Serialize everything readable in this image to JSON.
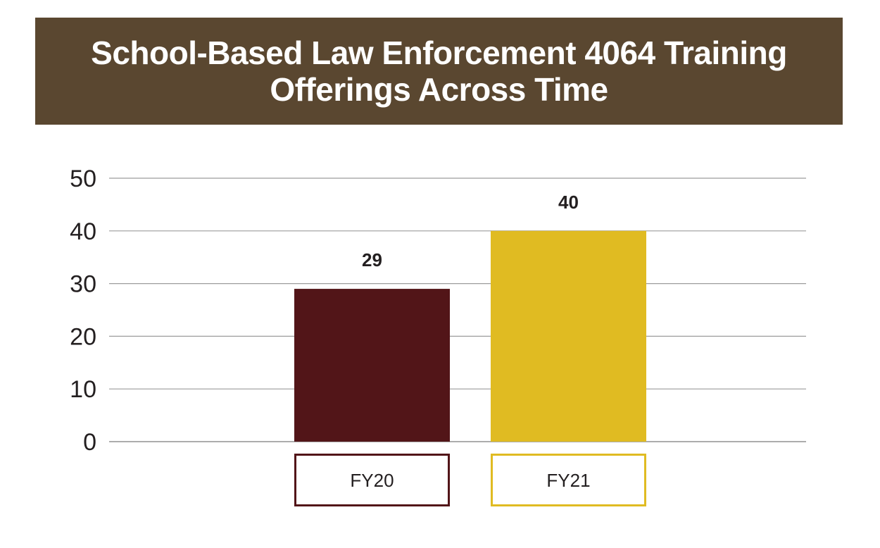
{
  "title": {
    "line1": "School-Based Law Enforcement 4064 Training",
    "line2": "Offerings Across Time"
  },
  "colors": {
    "banner": "#5a4730",
    "fy20": "#521518",
    "fy21": "#e0bb22",
    "grid": "#9c9c9c"
  },
  "chart_data": {
    "type": "bar",
    "title": "School-Based Law Enforcement 4064 Training Offerings Across Time",
    "categories": [
      "FY20",
      "FY21"
    ],
    "values": [
      29,
      40
    ],
    "bar_colors": [
      "#521518",
      "#e0bb22"
    ],
    "data_labels": [
      "29",
      "40"
    ],
    "ylim": [
      0,
      50
    ],
    "yticks": [
      0,
      10,
      20,
      30,
      40,
      50
    ],
    "xlabel": "",
    "ylabel": "",
    "grid": true,
    "legend": "none"
  }
}
